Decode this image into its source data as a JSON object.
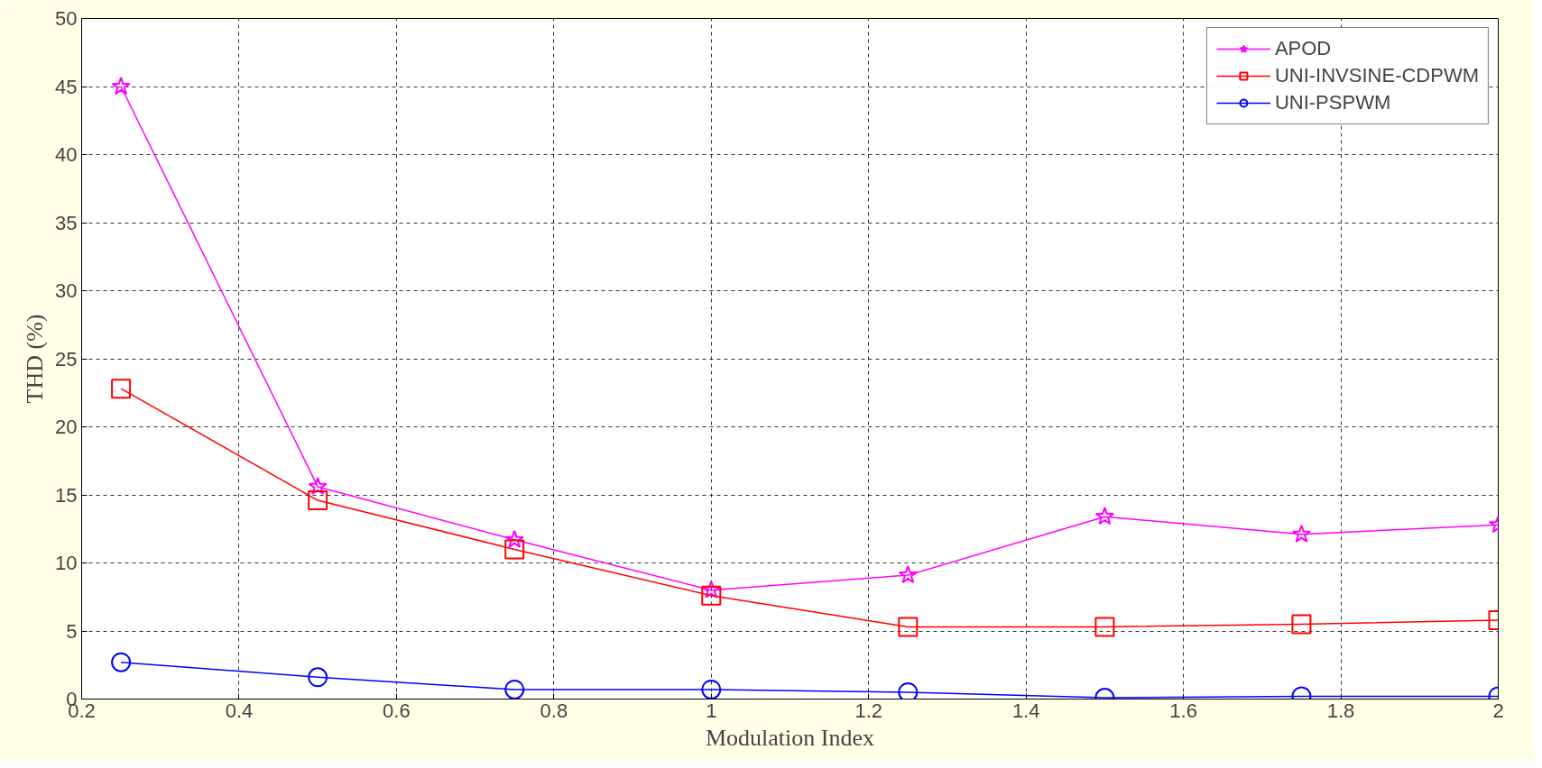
{
  "chart_data": {
    "type": "line",
    "xlabel": "Modulation Index",
    "ylabel": "THD (%)",
    "x": [
      0.25,
      0.5,
      0.75,
      1,
      1.25,
      1.5,
      1.75,
      2
    ],
    "series": [
      {
        "name": "APOD",
        "color": "#ff00ff",
        "marker": "star",
        "values": [
          45.0,
          15.6,
          11.7,
          8.0,
          9.1,
          13.4,
          12.1,
          12.8
        ]
      },
      {
        "name": "UNI-INVSINE-CDPWM",
        "color": "#ff0000",
        "marker": "square",
        "values": [
          22.8,
          14.6,
          11.0,
          7.6,
          5.3,
          5.3,
          5.5,
          5.8
        ]
      },
      {
        "name": "UNI-PSPWM",
        "color": "#0000ff",
        "marker": "circle",
        "values": [
          2.7,
          1.6,
          0.7,
          0.7,
          0.5,
          0.1,
          0.2,
          0.2
        ]
      }
    ],
    "xlim": [
      0.2,
      2
    ],
    "ylim": [
      0,
      50
    ],
    "xticks": [
      0.2,
      0.4,
      0.6,
      0.8,
      1,
      1.2,
      1.4,
      1.6,
      1.8,
      2
    ],
    "yticks": [
      0,
      5,
      10,
      15,
      20,
      25,
      30,
      35,
      40,
      45,
      50
    ],
    "grid": true,
    "legend": "top right",
    "line_style": "solid"
  }
}
